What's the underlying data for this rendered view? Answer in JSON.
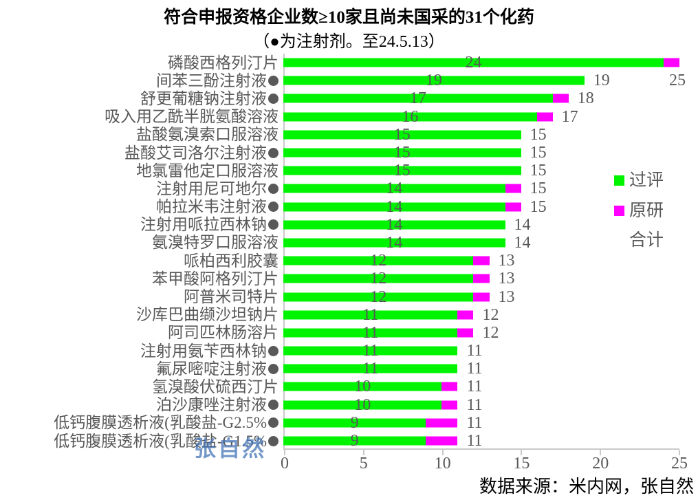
{
  "title": "符合申报资格企业数≥10家且尚未国采的31个化药",
  "subtitle": "（●为注射剂。至24.5.13）",
  "footer": {
    "source_label": "数据来源：米内网，张自然"
  },
  "watermark": "张自然",
  "legend": {
    "passed": "过评",
    "original": "原研",
    "total": "合计"
  },
  "colors": {
    "passed": "#00f400",
    "original": "#ff00ff",
    "label_gray": "#595959",
    "axis_gray": "#c9c9c9",
    "watermark_blue": "#3e70b4"
  },
  "injection_dot_meaning": "注射剂",
  "chart_data": {
    "type": "bar",
    "orientation": "horizontal-stacked",
    "title": "符合申报资格企业数≥10家且尚未国采的31个化药",
    "subtitle": "（●为注射剂。至24.5.13）",
    "xlim": [
      0,
      25
    ],
    "xticks": [
      0,
      5,
      10,
      15,
      20,
      25
    ],
    "grid": false,
    "legend_position": "right",
    "legend_entries": [
      "过评",
      "原研",
      "合计"
    ],
    "categories": [
      "磷酸西格列汀片",
      "间苯三酚注射液",
      "舒更葡糖钠注射液",
      "吸入用乙酰半胱氨酸溶液",
      "盐酸氨溴索口服溶液",
      "盐酸艾司洛尔注射液",
      "地氯雷他定口服溶液",
      "注射用尼可地尔",
      "帕拉米韦注射液",
      "注射用哌拉西林钠",
      "氨溴特罗口服溶液",
      "哌柏西利胶囊",
      "苯甲酸阿格列汀片",
      "阿普米司特片",
      "沙库巴曲缬沙坦钠片",
      "阿司匹林肠溶片",
      "注射用氨苄西林钠",
      "氟尿嘧啶注射液",
      "氢溴酸伏硫西汀片",
      "泊沙康唑注射液",
      "低钙腹膜透析液(乳酸盐-G2.5%",
      "低钙腹膜透析液(乳酸盐-G1.5%"
    ],
    "injectable": [
      false,
      true,
      true,
      false,
      false,
      true,
      false,
      true,
      true,
      true,
      false,
      false,
      false,
      false,
      false,
      false,
      true,
      true,
      false,
      true,
      true,
      true
    ],
    "series": [
      {
        "name": "过评",
        "values": [
          24,
          19,
          17,
          16,
          15,
          15,
          15,
          14,
          14,
          14,
          14,
          12,
          12,
          12,
          11,
          11,
          11,
          11,
          10,
          10,
          9,
          9
        ]
      },
      {
        "name": "原研",
        "values": [
          1,
          0,
          1,
          1,
          0,
          0,
          0,
          1,
          1,
          0,
          0,
          1,
          1,
          1,
          1,
          1,
          0,
          0,
          1,
          1,
          2,
          2
        ]
      }
    ],
    "totals": [
      25,
      19,
      18,
      17,
      15,
      15,
      15,
      15,
      15,
      14,
      14,
      13,
      13,
      13,
      12,
      12,
      11,
      11,
      11,
      11,
      11,
      11
    ]
  }
}
